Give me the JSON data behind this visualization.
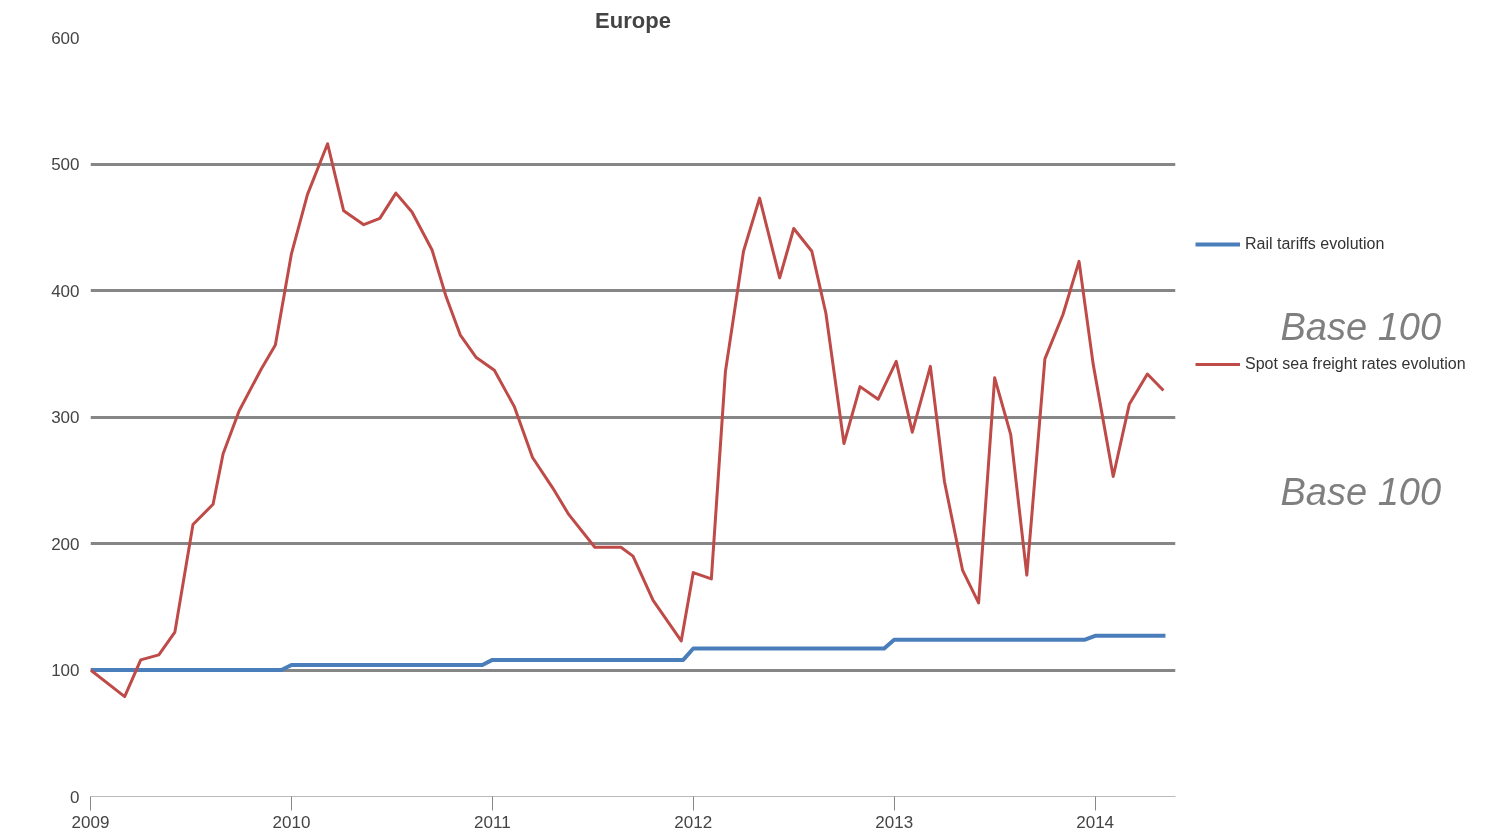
{
  "chart_data": {
    "type": "line",
    "title": "Europe",
    "xlim": [
      2009,
      2014.4
    ],
    "xticks": [
      {
        "value": 2009,
        "label": "2009"
      },
      {
        "value": 2010,
        "label": "2010"
      },
      {
        "value": 2011,
        "label": "2011"
      },
      {
        "value": 2012,
        "label": "2012"
      },
      {
        "value": 2013,
        "label": "2013"
      },
      {
        "value": 2014,
        "label": "2014"
      }
    ],
    "ylim": [
      0,
      600
    ],
    "yticks": [
      0,
      100,
      200,
      300,
      400,
      500,
      600
    ],
    "grid": "y",
    "legend": "right",
    "annotations": [
      "Base 100",
      "Base 100"
    ],
    "series": [
      {
        "name": "Rail tariffs evolution",
        "color": "#4a7ebb",
        "x": [
          2009,
          2009.95,
          2010,
          2010.95,
          2011,
          2011.95,
          2012,
          2012.95,
          2013,
          2013.95,
          2014,
          2014.35
        ],
        "values": [
          100,
          100,
          104,
          104,
          108,
          108,
          117,
          117,
          124,
          124,
          127,
          127
        ]
      },
      {
        "name": "Spot sea freight rates evolution",
        "color": "#be4b48",
        "x": [
          2009,
          2009.17,
          2009.25,
          2009.34,
          2009.42,
          2009.51,
          2009.61,
          2009.66,
          2009.74,
          2009.85,
          2009.92,
          2010,
          2010.08,
          2010.18,
          2010.26,
          2010.36,
          2010.44,
          2010.52,
          2010.6,
          2010.7,
          2010.77,
          2010.84,
          2010.92,
          2011.01,
          2011.11,
          2011.2,
          2011.3,
          2011.38,
          2011.51,
          2011.64,
          2011.7,
          2011.8,
          2011.94,
          2012,
          2012.09,
          2012.16,
          2012.25,
          2012.33,
          2012.43,
          2012.5,
          2012.59,
          2012.66,
          2012.75,
          2012.83,
          2012.92,
          2013.01,
          2013.09,
          2013.18,
          2013.25,
          2013.34,
          2013.42,
          2013.5,
          2013.58,
          2013.66,
          2013.75,
          2013.84,
          2013.92,
          2013.99,
          2014.09,
          2014.17,
          2014.26,
          2014.34
        ],
        "values": [
          100,
          79,
          108,
          112,
          130,
          215,
          231,
          271,
          305,
          338,
          357,
          429,
          476,
          516,
          463,
          452,
          457,
          477,
          462,
          432,
          395,
          365,
          347,
          337,
          308,
          268,
          244,
          223,
          197,
          197,
          190,
          155,
          123,
          177,
          172,
          336,
          431,
          473,
          410,
          449,
          431,
          382,
          279,
          324,
          314,
          344,
          288,
          340,
          249,
          179,
          153,
          331,
          286,
          175,
          346,
          381,
          423,
          342,
          253,
          310,
          334,
          321
        ]
      }
    ]
  }
}
